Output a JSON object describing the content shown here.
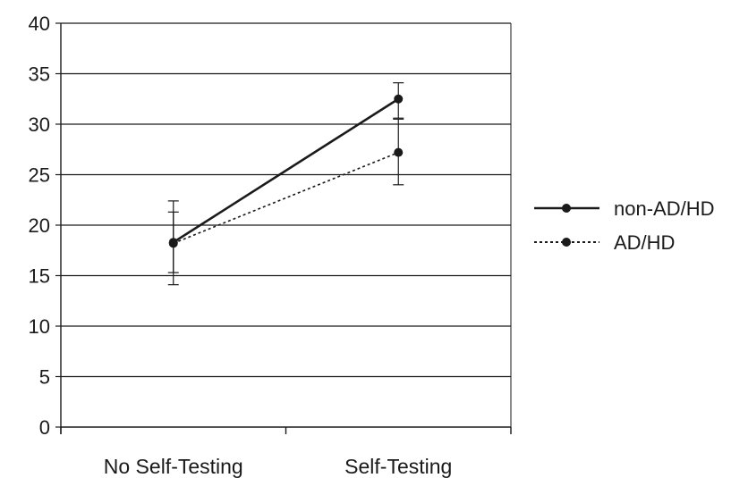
{
  "chart_data": {
    "type": "line",
    "categories": [
      "No Self-Testing",
      "Self-Testing"
    ],
    "series": [
      {
        "name": "non-AD/HD",
        "values": [
          18.3,
          32.5
        ],
        "error_low": [
          15.3,
          30.6
        ],
        "error_high": [
          21.3,
          34.1
        ],
        "line_style": "solid",
        "color": "#1a1a1a"
      },
      {
        "name": "AD/HD",
        "values": [
          18.2,
          27.2
        ],
        "error_low": [
          14.1,
          24.0
        ],
        "error_high": [
          22.4,
          30.5
        ],
        "line_style": "dotted",
        "color": "#1a1a1a"
      }
    ],
    "y_ticks": [
      "0",
      "5",
      "10",
      "15",
      "20",
      "25",
      "30",
      "35",
      "40"
    ],
    "ylim": [
      0,
      40
    ],
    "grid": true,
    "legend_position": "right"
  }
}
